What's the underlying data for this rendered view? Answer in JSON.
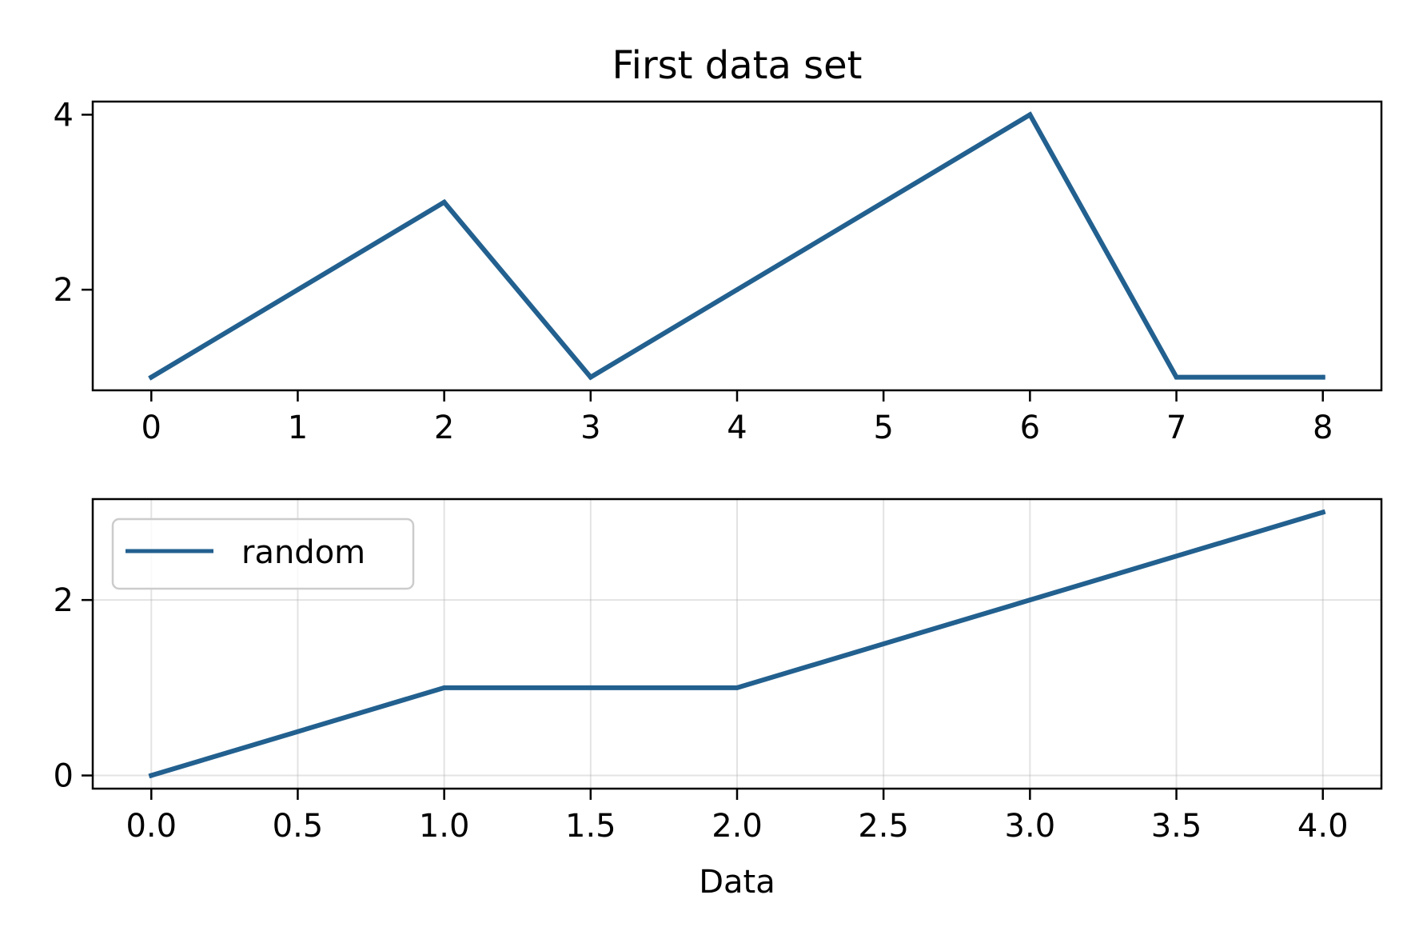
{
  "chart_data": [
    {
      "type": "line",
      "title": "First data set",
      "xlabel": "",
      "ylabel": "",
      "x": [
        0,
        1,
        2,
        3,
        4,
        5,
        6,
        7,
        8
      ],
      "series": [
        {
          "values": [
            1,
            2,
            3,
            1,
            2,
            3,
            4,
            1,
            1
          ],
          "color": "#22608f"
        }
      ],
      "xlim": [
        -0.4,
        8.4
      ],
      "ylim": [
        0.85,
        4.15
      ],
      "xticks": [
        0,
        1,
        2,
        3,
        4,
        5,
        6,
        7,
        8
      ],
      "xtick_labels": [
        "0",
        "1",
        "2",
        "3",
        "4",
        "5",
        "6",
        "7",
        "8"
      ],
      "yticks": [
        2,
        4
      ],
      "ytick_labels": [
        "2",
        "4"
      ],
      "grid": false,
      "legend": null
    },
    {
      "type": "line",
      "title": "",
      "xlabel": "Data",
      "ylabel": "",
      "x": [
        0,
        1,
        2,
        3,
        4
      ],
      "series": [
        {
          "name": "random",
          "values": [
            0,
            1,
            1,
            2,
            3
          ],
          "color": "#22608f"
        }
      ],
      "xlim": [
        -0.2,
        4.2
      ],
      "ylim": [
        -0.15,
        3.15
      ],
      "xticks": [
        0,
        0.5,
        1,
        1.5,
        2,
        2.5,
        3,
        3.5,
        4
      ],
      "xtick_labels": [
        "0.0",
        "0.5",
        "1.0",
        "1.5",
        "2.0",
        "2.5",
        "3.0",
        "3.5",
        "4.0"
      ],
      "yticks": [
        0,
        2
      ],
      "ytick_labels": [
        "0",
        "2"
      ],
      "grid": true,
      "legend": "upper left"
    }
  ]
}
